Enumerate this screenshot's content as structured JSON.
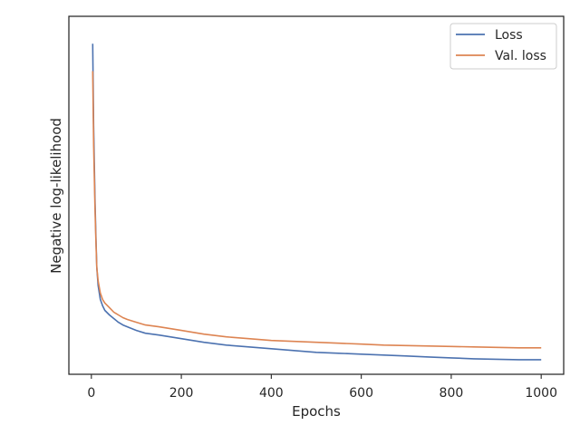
{
  "chart_data": {
    "type": "line",
    "title": "",
    "xlabel": "Epochs",
    "ylabel": "Negative log-likelihood",
    "xlim": [
      -50,
      1050
    ],
    "ylim": [
      0.18,
      4.1
    ],
    "xticks": [
      0,
      200,
      400,
      600,
      800,
      1000
    ],
    "y_tick_labels_shown": false,
    "grid": false,
    "legend_position": "top-right",
    "series": [
      {
        "name": "Loss",
        "color": "#4c72b0",
        "x": [
          3,
          5,
          8,
          10,
          12,
          15,
          20,
          25,
          30,
          40,
          50,
          60,
          70,
          80,
          100,
          120,
          150,
          200,
          250,
          300,
          350,
          400,
          450,
          500,
          550,
          600,
          650,
          700,
          750,
          800,
          850,
          900,
          950,
          1000
        ],
        "y": [
          3.8,
          2.9,
          2.1,
          1.7,
          1.35,
          1.15,
          1.0,
          0.93,
          0.88,
          0.83,
          0.79,
          0.75,
          0.72,
          0.7,
          0.66,
          0.63,
          0.61,
          0.57,
          0.53,
          0.5,
          0.48,
          0.46,
          0.44,
          0.42,
          0.41,
          0.4,
          0.39,
          0.38,
          0.37,
          0.36,
          0.35,
          0.345,
          0.34,
          0.34
        ]
      },
      {
        "name": "Val. loss",
        "color": "#dd8452",
        "x": [
          3,
          5,
          8,
          10,
          12,
          15,
          20,
          25,
          30,
          40,
          50,
          60,
          70,
          80,
          100,
          120,
          150,
          200,
          250,
          300,
          350,
          400,
          450,
          500,
          550,
          600,
          650,
          700,
          750,
          800,
          850,
          900,
          950,
          1000
        ],
        "y": [
          3.5,
          2.7,
          2.0,
          1.65,
          1.35,
          1.2,
          1.07,
          1.0,
          0.96,
          0.91,
          0.86,
          0.83,
          0.8,
          0.78,
          0.75,
          0.72,
          0.7,
          0.66,
          0.62,
          0.59,
          0.57,
          0.55,
          0.54,
          0.53,
          0.52,
          0.51,
          0.5,
          0.495,
          0.49,
          0.485,
          0.48,
          0.475,
          0.47,
          0.47
        ]
      }
    ]
  }
}
